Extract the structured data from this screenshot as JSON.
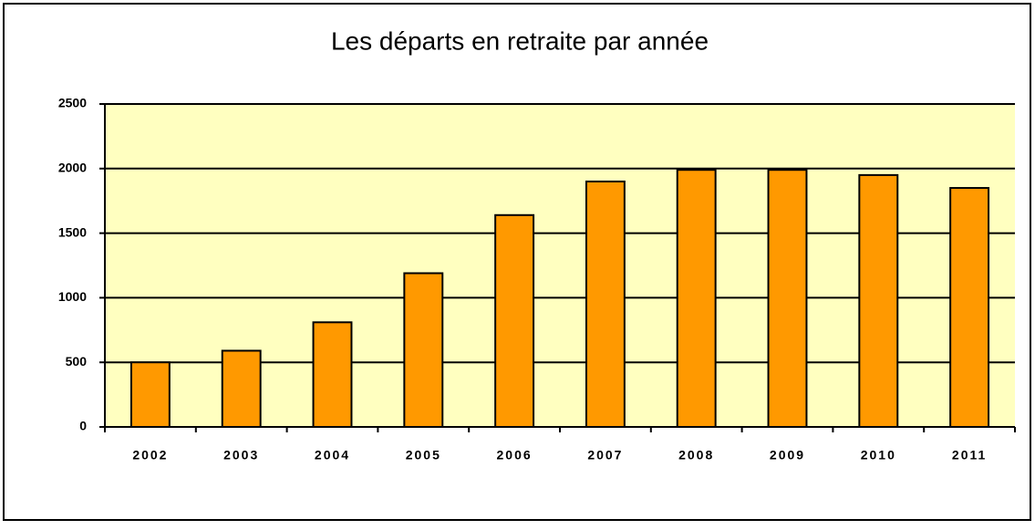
{
  "chart_data": {
    "type": "bar",
    "title": "Les départs en retraite par année",
    "categories": [
      "2002",
      "2003",
      "2004",
      "2005",
      "2006",
      "2007",
      "2008",
      "2009",
      "2010",
      "2011"
    ],
    "values": [
      500,
      590,
      810,
      1190,
      1640,
      1900,
      1990,
      1990,
      1950,
      1850
    ],
    "color": "#ff9900",
    "ylim": [
      0,
      2500
    ],
    "yticks": [
      0,
      500,
      1000,
      1500,
      2000,
      2500
    ],
    "grid": true
  }
}
